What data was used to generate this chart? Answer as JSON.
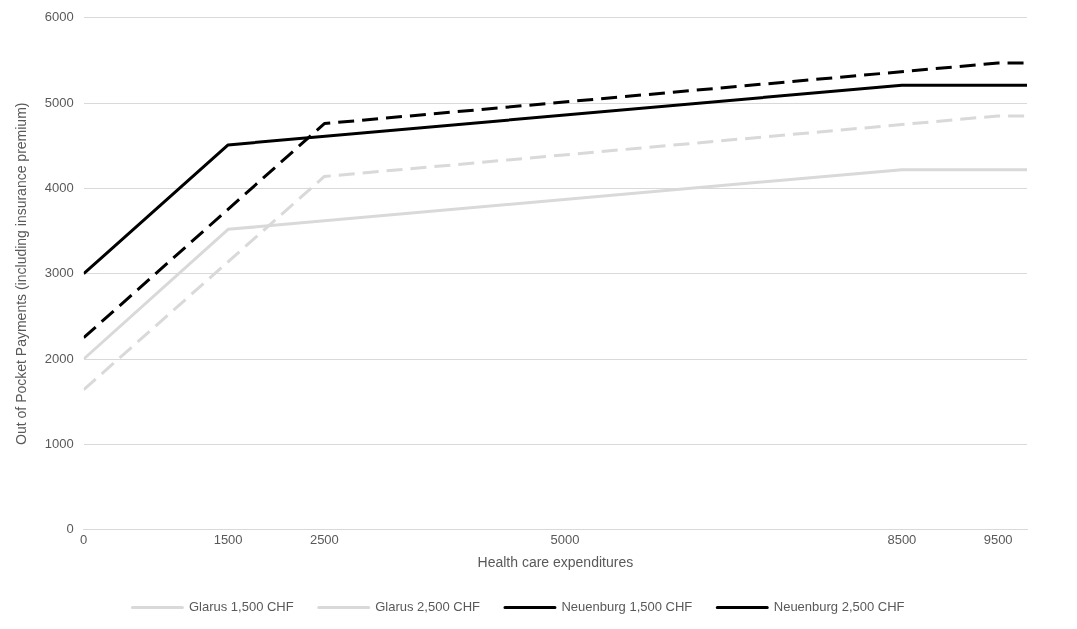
{
  "chart_data": {
    "type": "line",
    "xlabel": "Health care expenditures",
    "ylabel": "Out of Pocket Payments (including insurance premium)",
    "xlim": [
      0,
      9800
    ],
    "xticks": [
      0,
      1500,
      2500,
      5000,
      8500,
      9500
    ],
    "ylim": [
      0,
      6000
    ],
    "yticks": [
      0,
      1000,
      2000,
      3000,
      4000,
      5000,
      6000
    ],
    "grid": "y",
    "legend": "bottom",
    "marker": "none",
    "series": [
      {
        "name": "Glarus 1,500 CHF",
        "color": "#d9d9d9",
        "line_style": "solid",
        "x": [
          0,
          1500,
          8500,
          9800
        ],
        "values": [
          2000,
          3520,
          4220,
          4220
        ]
      },
      {
        "name": "Glarus 2,500 CHF",
        "color": "#d9d9d9",
        "line_style": "dashed",
        "x": [
          0,
          2500,
          9500,
          9800
        ],
        "values": [
          1640,
          4140,
          4850,
          4850
        ]
      },
      {
        "name": "Neuenburg 1,500 CHF",
        "color": "#000000",
        "line_style": "solid",
        "x": [
          0,
          1500,
          8500,
          9800
        ],
        "values": [
          3000,
          4510,
          5210,
          5210
        ]
      },
      {
        "name": "Neuenburg 2,500 CHF",
        "color": "#000000",
        "line_style": "dashed",
        "x": [
          0,
          2500,
          9500,
          9800
        ],
        "values": [
          2250,
          4760,
          5470,
          5470
        ]
      }
    ]
  }
}
